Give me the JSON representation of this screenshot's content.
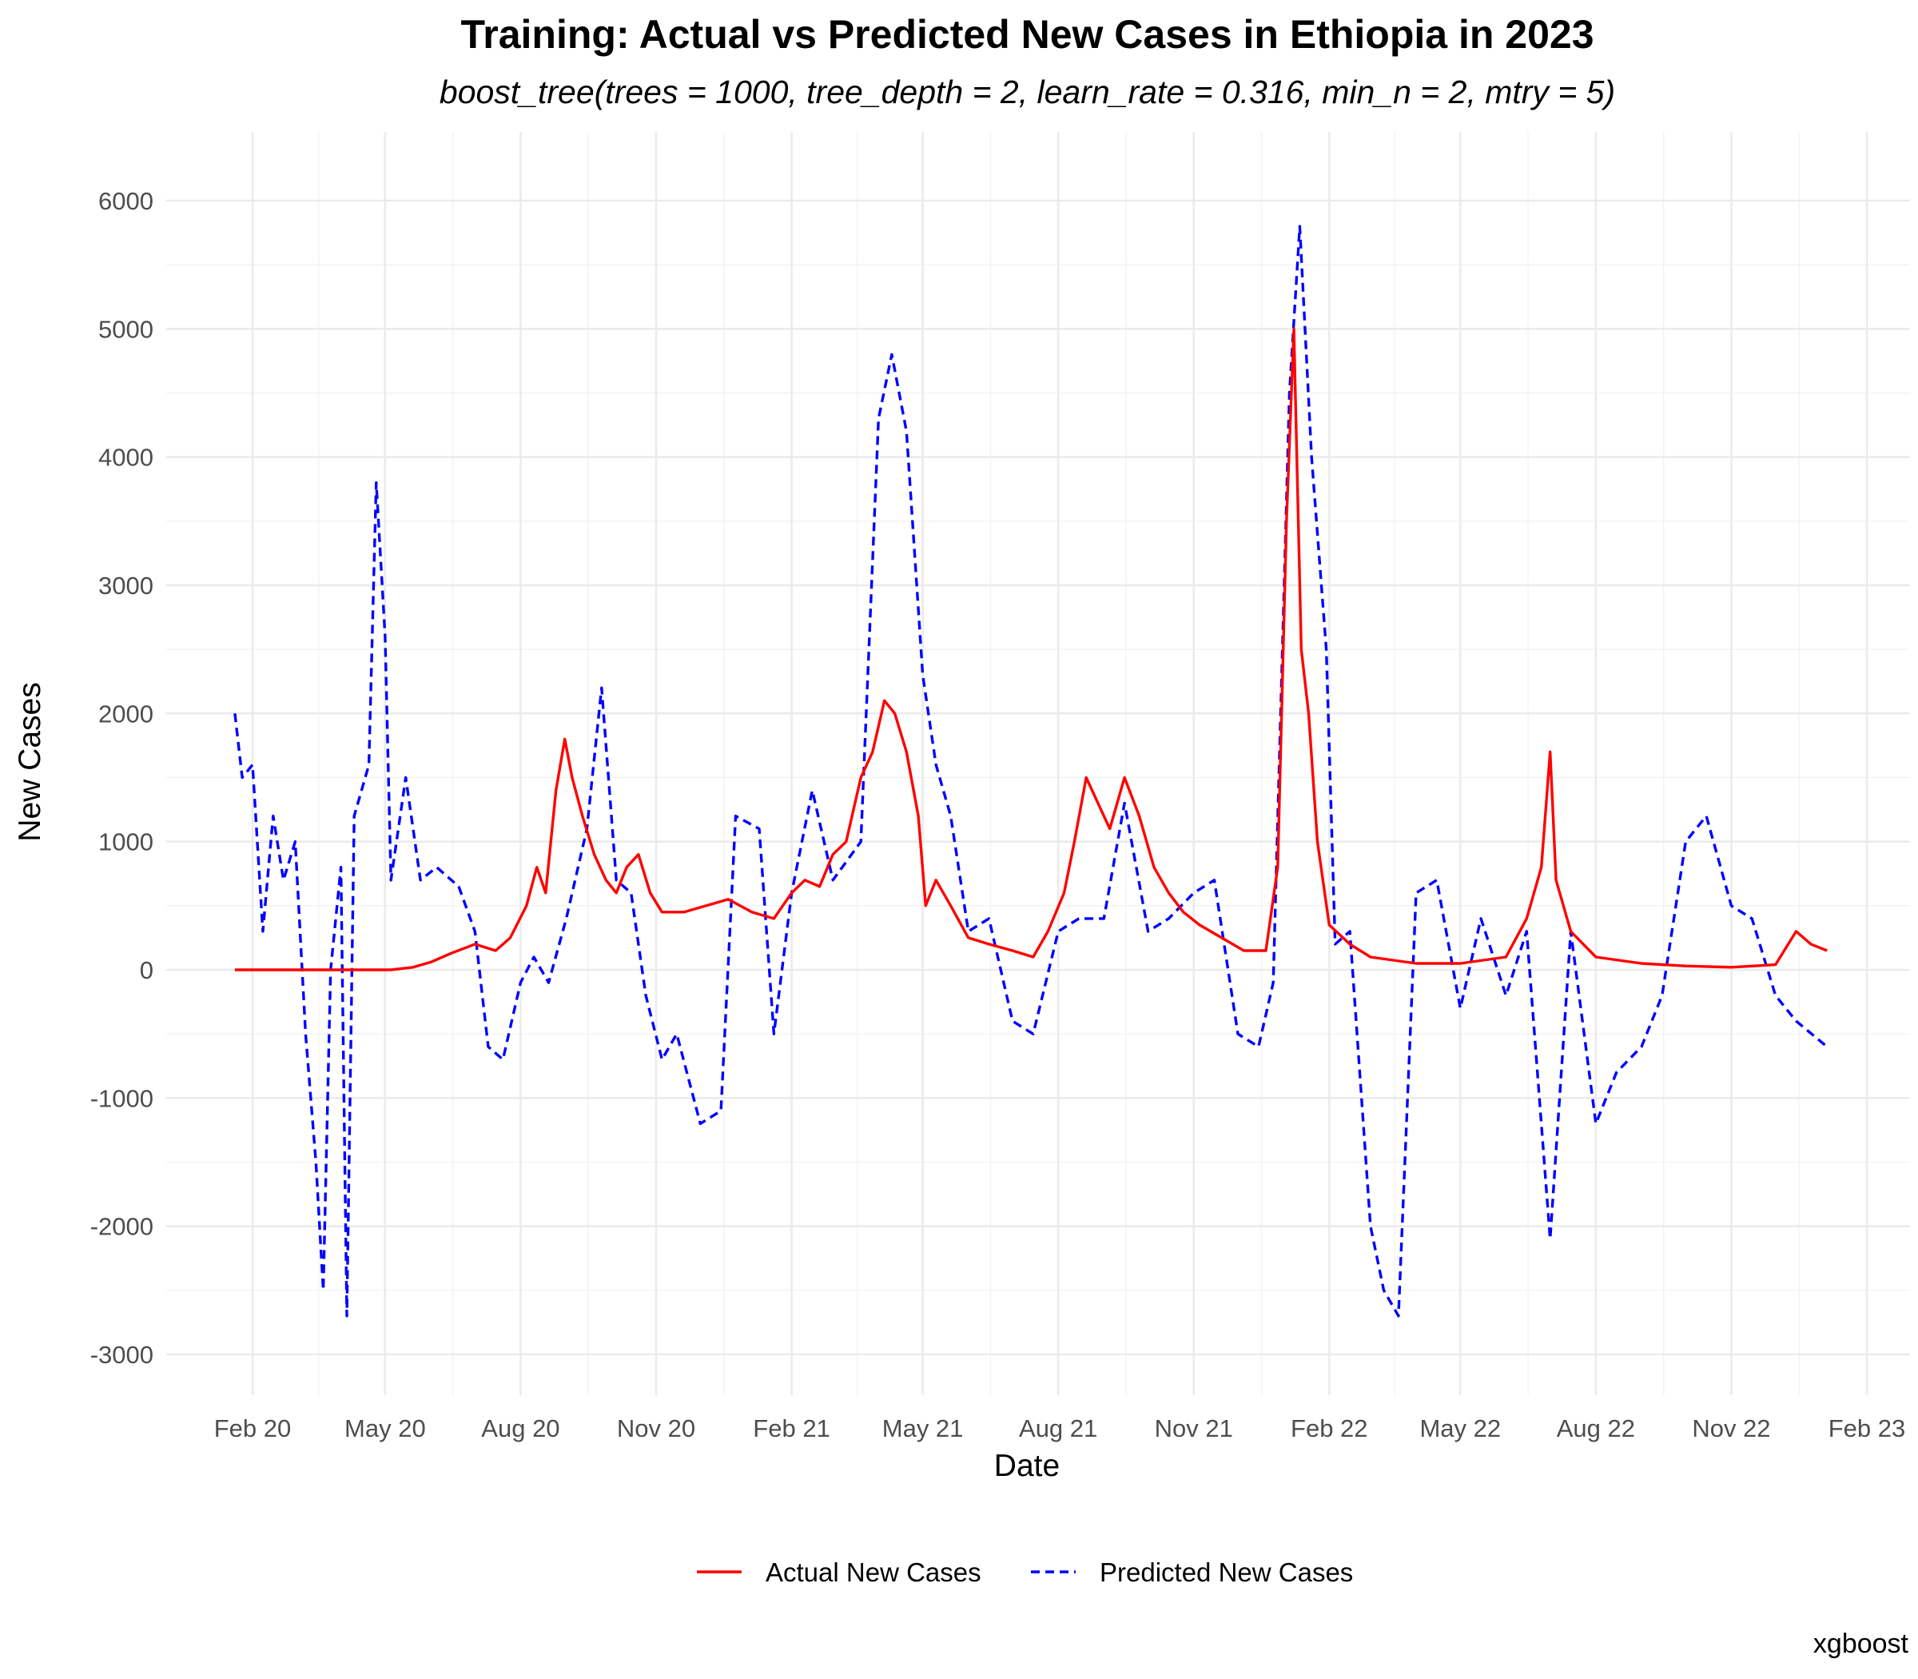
{
  "chart_data": {
    "type": "line",
    "title": "Training: Actual vs Predicted New Cases in Ethiopia in 2023",
    "subtitle": "boost_tree(trees = 1000, tree_depth = 2, learn_rate = 0.316, min_n = 2, mtry = 5)",
    "xlabel": "Date",
    "ylabel": "New Cases",
    "caption": "xgboost",
    "ylim": [
      -3500,
      6500
    ],
    "y_ticks": [
      -3000,
      -2000,
      -1000,
      0,
      1000,
      2000,
      3000,
      4000,
      5000,
      6000
    ],
    "x_ticks": [
      {
        "date": "2020-02-01",
        "label": "Feb 20"
      },
      {
        "date": "2020-05-01",
        "label": "May 20"
      },
      {
        "date": "2020-08-01",
        "label": "Aug 20"
      },
      {
        "date": "2020-11-01",
        "label": "Nov 20"
      },
      {
        "date": "2021-02-01",
        "label": "Feb 21"
      },
      {
        "date": "2021-05-01",
        "label": "May 21"
      },
      {
        "date": "2021-08-01",
        "label": "Aug 21"
      },
      {
        "date": "2021-11-01",
        "label": "Nov 21"
      },
      {
        "date": "2022-02-01",
        "label": "Feb 22"
      },
      {
        "date": "2022-05-01",
        "label": "May 22"
      },
      {
        "date": "2022-08-01",
        "label": "Aug 22"
      },
      {
        "date": "2022-11-01",
        "label": "Nov 22"
      },
      {
        "date": "2023-02-01",
        "label": "Feb 23"
      }
    ],
    "grid": true,
    "legend_position": "bottom",
    "series": [
      {
        "name": "Actual New Cases",
        "color": "#ff0000",
        "style": "solid",
        "points": [
          [
            "2020-01-20",
            0
          ],
          [
            "2020-02-15",
            0
          ],
          [
            "2020-03-15",
            0
          ],
          [
            "2020-04-15",
            0
          ],
          [
            "2020-05-05",
            0
          ],
          [
            "2020-05-20",
            20
          ],
          [
            "2020-06-01",
            60
          ],
          [
            "2020-06-15",
            130
          ],
          [
            "2020-07-01",
            200
          ],
          [
            "2020-07-15",
            150
          ],
          [
            "2020-07-25",
            250
          ],
          [
            "2020-08-05",
            500
          ],
          [
            "2020-08-12",
            800
          ],
          [
            "2020-08-18",
            600
          ],
          [
            "2020-08-25",
            1400
          ],
          [
            "2020-08-31",
            1800
          ],
          [
            "2020-09-05",
            1500
          ],
          [
            "2020-09-12",
            1200
          ],
          [
            "2020-09-20",
            900
          ],
          [
            "2020-09-28",
            700
          ],
          [
            "2020-10-05",
            600
          ],
          [
            "2020-10-12",
            800
          ],
          [
            "2020-10-20",
            900
          ],
          [
            "2020-10-28",
            600
          ],
          [
            "2020-11-05",
            450
          ],
          [
            "2020-11-20",
            450
          ],
          [
            "2020-12-05",
            500
          ],
          [
            "2020-12-20",
            550
          ],
          [
            "2021-01-05",
            450
          ],
          [
            "2021-01-20",
            400
          ],
          [
            "2021-02-01",
            600
          ],
          [
            "2021-02-10",
            700
          ],
          [
            "2021-02-20",
            650
          ],
          [
            "2021-03-01",
            900
          ],
          [
            "2021-03-10",
            1000
          ],
          [
            "2021-03-20",
            1500
          ],
          [
            "2021-03-28",
            1700
          ],
          [
            "2021-04-05",
            2100
          ],
          [
            "2021-04-12",
            2000
          ],
          [
            "2021-04-20",
            1700
          ],
          [
            "2021-04-28",
            1200
          ],
          [
            "2021-05-03",
            500
          ],
          [
            "2021-05-10",
            700
          ],
          [
            "2021-05-20",
            500
          ],
          [
            "2021-06-01",
            250
          ],
          [
            "2021-06-15",
            200
          ],
          [
            "2021-07-01",
            150
          ],
          [
            "2021-07-15",
            100
          ],
          [
            "2021-07-25",
            300
          ],
          [
            "2021-08-05",
            600
          ],
          [
            "2021-08-12",
            1000
          ],
          [
            "2021-08-20",
            1500
          ],
          [
            "2021-08-28",
            1300
          ],
          [
            "2021-09-05",
            1100
          ],
          [
            "2021-09-15",
            1500
          ],
          [
            "2021-09-25",
            1200
          ],
          [
            "2021-10-05",
            800
          ],
          [
            "2021-10-15",
            600
          ],
          [
            "2021-10-25",
            450
          ],
          [
            "2021-11-05",
            350
          ],
          [
            "2021-11-20",
            250
          ],
          [
            "2021-12-05",
            150
          ],
          [
            "2021-12-20",
            150
          ],
          [
            "2021-12-28",
            800
          ],
          [
            "2022-01-03",
            3500
          ],
          [
            "2022-01-08",
            5000
          ],
          [
            "2022-01-13",
            2500
          ],
          [
            "2022-01-18",
            2000
          ],
          [
            "2022-01-24",
            1000
          ],
          [
            "2022-02-01",
            350
          ],
          [
            "2022-02-15",
            200
          ],
          [
            "2022-03-01",
            100
          ],
          [
            "2022-04-01",
            50
          ],
          [
            "2022-05-01",
            50
          ],
          [
            "2022-06-01",
            100
          ],
          [
            "2022-06-15",
            400
          ],
          [
            "2022-06-25",
            800
          ],
          [
            "2022-07-01",
            1700
          ],
          [
            "2022-07-05",
            700
          ],
          [
            "2022-07-15",
            300
          ],
          [
            "2022-08-01",
            100
          ],
          [
            "2022-09-01",
            50
          ],
          [
            "2022-10-01",
            30
          ],
          [
            "2022-11-01",
            20
          ],
          [
            "2022-12-01",
            40
          ],
          [
            "2022-12-15",
            300
          ],
          [
            "2022-12-25",
            200
          ],
          [
            "2023-01-05",
            150
          ]
        ]
      },
      {
        "name": "Predicted New Cases",
        "color": "#0000ff",
        "style": "dashed",
        "points": [
          [
            "2020-01-20",
            2000
          ],
          [
            "2020-01-25",
            1500
          ],
          [
            "2020-02-01",
            1600
          ],
          [
            "2020-02-08",
            300
          ],
          [
            "2020-02-15",
            1200
          ],
          [
            "2020-02-22",
            700
          ],
          [
            "2020-03-01",
            1000
          ],
          [
            "2020-03-08",
            -500
          ],
          [
            "2020-03-15",
            -1500
          ],
          [
            "2020-03-20",
            -2500
          ],
          [
            "2020-03-25",
            0
          ],
          [
            "2020-04-01",
            800
          ],
          [
            "2020-04-05",
            -2700
          ],
          [
            "2020-04-10",
            1200
          ],
          [
            "2020-04-20",
            1600
          ],
          [
            "2020-04-25",
            3800
          ],
          [
            "2020-05-01",
            2600
          ],
          [
            "2020-05-05",
            700
          ],
          [
            "2020-05-15",
            1500
          ],
          [
            "2020-05-25",
            700
          ],
          [
            "2020-06-05",
            800
          ],
          [
            "2020-06-20",
            650
          ],
          [
            "2020-07-01",
            300
          ],
          [
            "2020-07-10",
            -600
          ],
          [
            "2020-07-20",
            -700
          ],
          [
            "2020-08-01",
            -100
          ],
          [
            "2020-08-10",
            100
          ],
          [
            "2020-08-20",
            -100
          ],
          [
            "2020-09-01",
            400
          ],
          [
            "2020-09-15",
            1100
          ],
          [
            "2020-09-25",
            2200
          ],
          [
            "2020-10-05",
            700
          ],
          [
            "2020-10-15",
            600
          ],
          [
            "2020-10-25",
            -200
          ],
          [
            "2020-11-05",
            -700
          ],
          [
            "2020-11-15",
            -500
          ],
          [
            "2020-12-01",
            -1200
          ],
          [
            "2020-12-15",
            -1100
          ],
          [
            "2020-12-25",
            1200
          ],
          [
            "2021-01-10",
            1100
          ],
          [
            "2021-01-20",
            -500
          ],
          [
            "2021-02-01",
            600
          ],
          [
            "2021-02-15",
            1400
          ],
          [
            "2021-03-01",
            700
          ],
          [
            "2021-03-20",
            1000
          ],
          [
            "2021-04-01",
            4300
          ],
          [
            "2021-04-10",
            4800
          ],
          [
            "2021-04-20",
            4200
          ],
          [
            "2021-05-01",
            2300
          ],
          [
            "2021-05-10",
            1600
          ],
          [
            "2021-05-20",
            1200
          ],
          [
            "2021-06-01",
            300
          ],
          [
            "2021-06-15",
            400
          ],
          [
            "2021-07-01",
            -400
          ],
          [
            "2021-07-15",
            -500
          ],
          [
            "2021-08-01",
            300
          ],
          [
            "2021-08-15",
            400
          ],
          [
            "2021-09-01",
            400
          ],
          [
            "2021-09-15",
            1300
          ],
          [
            "2021-10-01",
            300
          ],
          [
            "2021-10-15",
            400
          ],
          [
            "2021-11-01",
            600
          ],
          [
            "2021-11-15",
            700
          ],
          [
            "2021-12-01",
            -500
          ],
          [
            "2021-12-15",
            -600
          ],
          [
            "2021-12-25",
            -100
          ],
          [
            "2022-01-05",
            4500
          ],
          [
            "2022-01-12",
            5800
          ],
          [
            "2022-01-20",
            4000
          ],
          [
            "2022-01-30",
            2500
          ],
          [
            "2022-02-05",
            200
          ],
          [
            "2022-02-15",
            300
          ],
          [
            "2022-03-01",
            -2000
          ],
          [
            "2022-03-10",
            -2500
          ],
          [
            "2022-03-20",
            -2700
          ],
          [
            "2022-04-01",
            600
          ],
          [
            "2022-04-15",
            700
          ],
          [
            "2022-05-01",
            -300
          ],
          [
            "2022-05-15",
            400
          ],
          [
            "2022-06-01",
            -200
          ],
          [
            "2022-06-15",
            300
          ],
          [
            "2022-07-01",
            -2100
          ],
          [
            "2022-07-15",
            300
          ],
          [
            "2022-08-01",
            -1200
          ],
          [
            "2022-08-15",
            -800
          ],
          [
            "2022-09-01",
            -600
          ],
          [
            "2022-09-15",
            -200
          ],
          [
            "2022-10-01",
            1000
          ],
          [
            "2022-10-15",
            1200
          ],
          [
            "2022-11-01",
            500
          ],
          [
            "2022-11-15",
            400
          ],
          [
            "2022-12-01",
            -200
          ],
          [
            "2022-12-15",
            -400
          ],
          [
            "2023-01-05",
            -600
          ]
        ]
      }
    ]
  }
}
